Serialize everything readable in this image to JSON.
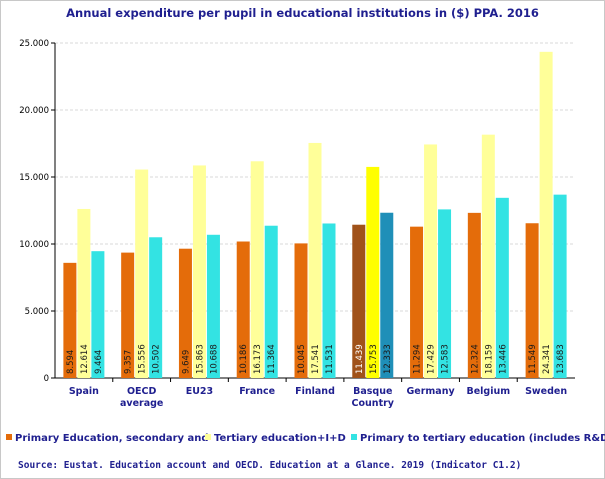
{
  "chart_data": {
    "type": "bar",
    "title": "Annual expenditure per pupil in educational institutions in ($) PPA. 2016",
    "xlabel": "",
    "ylabel": "",
    "ylim": [
      0,
      25000
    ],
    "ytick_labels": [
      "0",
      "5.000",
      "10.000",
      "15.000",
      "20.000",
      "25.000"
    ],
    "categories": [
      "Spain",
      "OECD\naverage",
      "EU23",
      "France",
      "Finland",
      "Basque\nCountry",
      "Germany",
      "Belgium",
      "Sweden"
    ],
    "highlight_category_index": 5,
    "series": [
      {
        "name": "Primary Education, secondary and",
        "color": "#e46c0a",
        "highlight_color": "#a0521a",
        "values": [
          8594,
          9357,
          9649,
          10186,
          10045,
          11439,
          11294,
          12324,
          11549
        ],
        "labels": [
          "8.594",
          "9.357",
          "9.649",
          "10.186",
          "10.045",
          "11.439",
          "11.294",
          "12.324",
          "11.549"
        ]
      },
      {
        "name": "Tertiary education+I+D",
        "color": "#ffff99",
        "highlight_color": "#ffff00",
        "values": [
          12614,
          15556,
          15863,
          16173,
          17541,
          15753,
          17429,
          18159,
          24341
        ],
        "labels": [
          "12.614",
          "15.556",
          "15.863",
          "16.173",
          "17.541",
          "15.753",
          "17.429",
          "18.159",
          "24.341"
        ]
      },
      {
        "name": "Primary to tertiary education (includes R&D)",
        "color": "#33e3e3",
        "highlight_color": "#1f8fb8",
        "values": [
          9464,
          10502,
          10688,
          11364,
          11531,
          12333,
          12583,
          13446,
          13683
        ],
        "labels": [
          "9.464",
          "10.502",
          "10.688",
          "11.364",
          "11.531",
          "12.333",
          "12.583",
          "13.446",
          "13.683"
        ]
      }
    ],
    "legend_position": "bottom",
    "grid": true
  },
  "source": "Source: Eustat. Education account and OECD. Education at a Glance. 2019 (Indicator C1.2)",
  "colors": {
    "text_navy": "#1f1f8f",
    "axis": "#000000",
    "grid": "#d9d9d9"
  }
}
